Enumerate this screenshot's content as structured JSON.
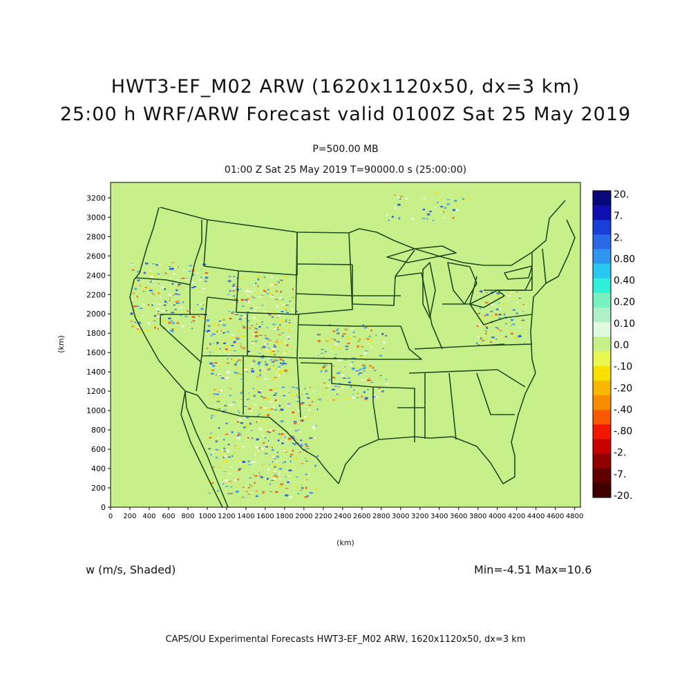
{
  "header": {
    "title_line1": "HWT3-EF_M02 ARW (1620x1120x50, dx=3 km)",
    "title_line2": "25:00 h WRF/ARW Forecast valid 0100Z Sat 25 May 2019",
    "level": "P=500.00 MB",
    "time_line": "01:00 Z Sat 25 May 2019    T=90000.0 s (25:00:00)"
  },
  "map": {
    "x_axis_label": "(km)",
    "y_axis_label": "(km)",
    "x_ticks": [
      0,
      200,
      400,
      600,
      800,
      1000,
      1200,
      1400,
      1600,
      1800,
      2000,
      2200,
      2400,
      2600,
      2800,
      3000,
      3200,
      3400,
      3600,
      3800,
      4000,
      4200,
      4400,
      4600,
      4800
    ],
    "y_ticks": [
      0,
      200,
      400,
      600,
      800,
      1000,
      1200,
      1400,
      1600,
      1800,
      2000,
      2200,
      2400,
      2600,
      2800,
      3000,
      3200
    ],
    "x_range": [
      0,
      4860
    ],
    "y_range": [
      0,
      3360
    ],
    "background_color": "#c8f08a",
    "boundary_color": "#1e4a1e",
    "updraft_color": "#1f4fe0",
    "downdraft_color": "#e86010"
  },
  "colorbar": {
    "labels": [
      "20.",
      "7.",
      "2.",
      "0.80",
      "0.40",
      "0.20",
      "0.10",
      "0.0",
      "-.10",
      "-.20",
      "-.40",
      "-.80",
      "-2.",
      "-7.",
      "-20."
    ],
    "colors": [
      "#08087a",
      "#1010b0",
      "#1a3fd8",
      "#2a6ae8",
      "#2e95f0",
      "#28c8f0",
      "#30f0d8",
      "#78f0c0",
      "#b0f0c8",
      "#e0fae0",
      "#c8f08a",
      "#e8f850",
      "#f8e000",
      "#f8b800",
      "#f88c00",
      "#f85800",
      "#f01800",
      "#c80000",
      "#900000",
      "#600000",
      "#400000"
    ]
  },
  "footer": {
    "variable": "w (m/s, Shaded)",
    "minmax": "Min=-4.51  Max=10.6",
    "credit": "CAPS/OU Experimental Forecasts  HWT3-EF_M02 ARW, 1620x1120x50, dx=3 km"
  }
}
